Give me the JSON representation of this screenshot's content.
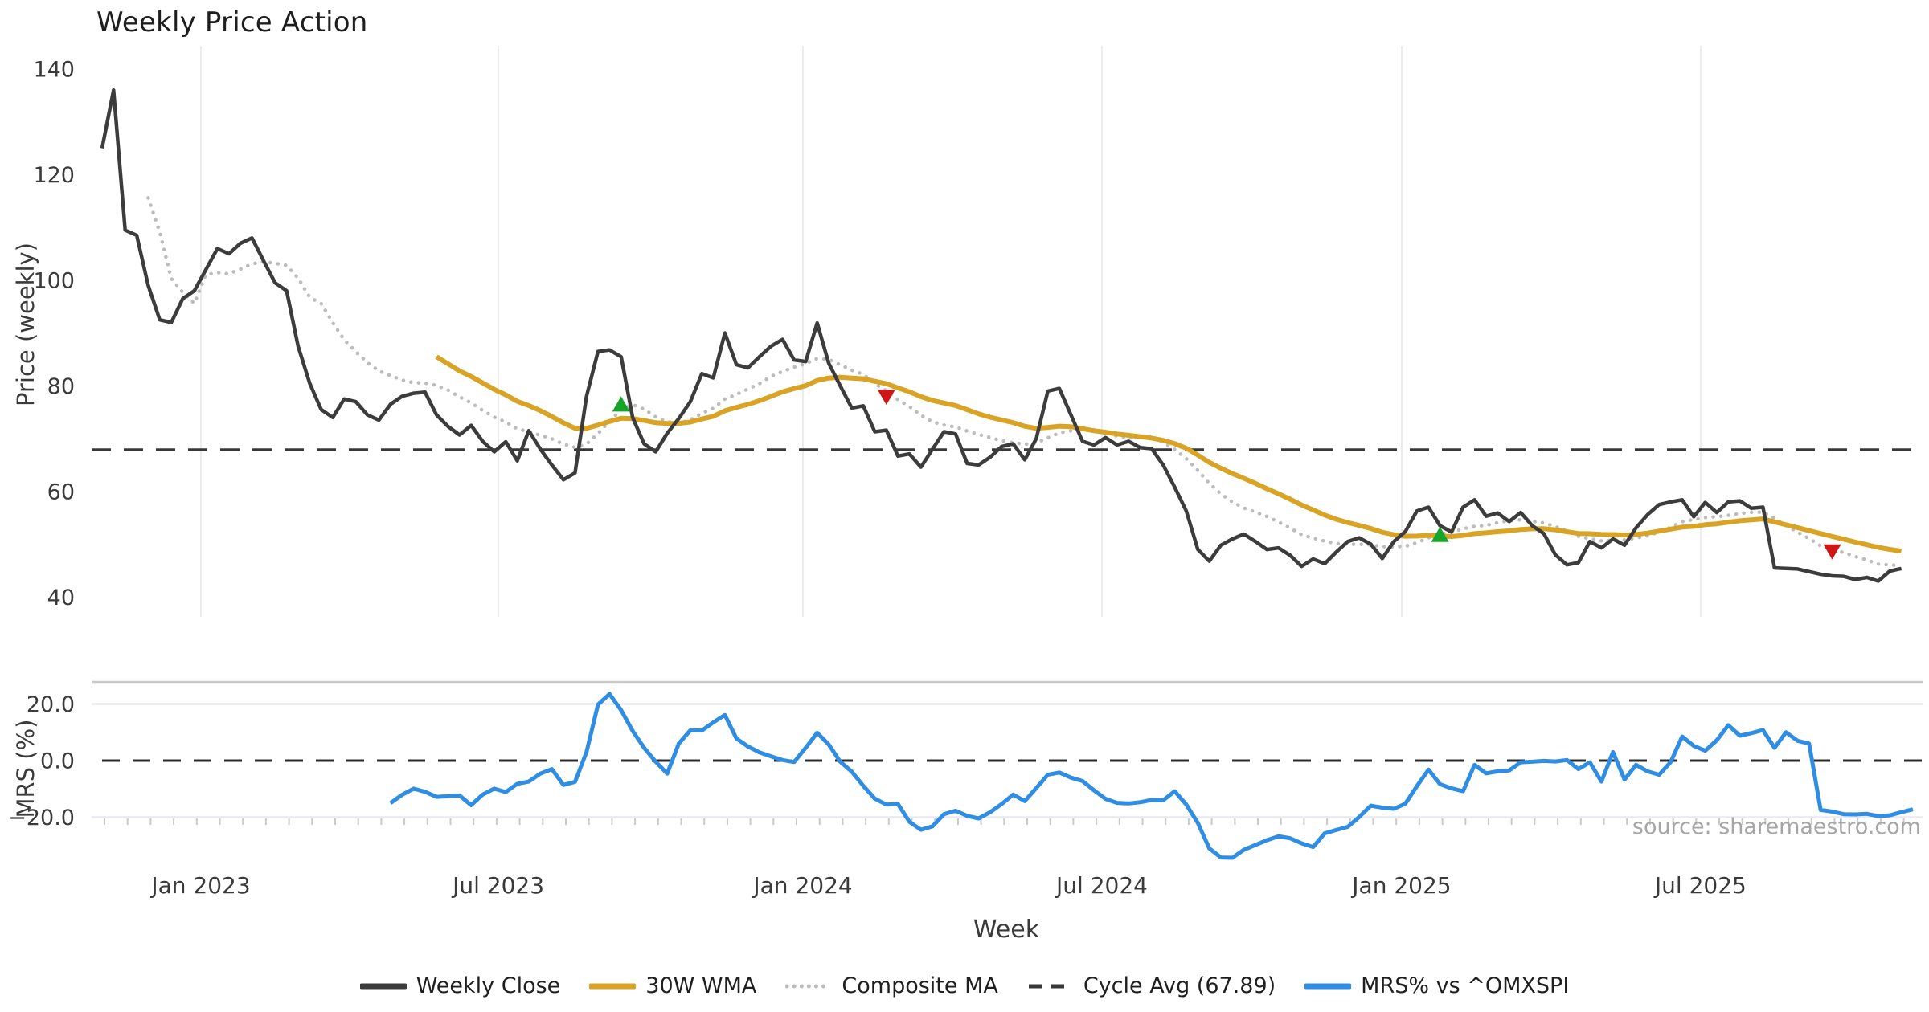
{
  "title": "Weekly Price Action",
  "source_note": "source: sharemaestro.com",
  "axes": {
    "price_ylabel": "Price (weekly)",
    "mrs_ylabel": "MRS (%)",
    "xlabel": "Week",
    "price_yticks": [
      140,
      120,
      100,
      80,
      60,
      40
    ],
    "mrs_yticks": [
      {
        "label": "20.0",
        "value": 20
      },
      {
        "label": "0.0",
        "value": 0
      },
      {
        "label": "−20.0",
        "value": -20
      }
    ],
    "xticks": [
      {
        "label": "Jan 2023",
        "week": 8.57
      },
      {
        "label": "Jul 2023",
        "week": 34.36
      },
      {
        "label": "Jan 2024",
        "week": 60.77
      },
      {
        "label": "Jul 2024",
        "week": 86.69
      },
      {
        "label": "Jan 2025",
        "week": 112.68
      },
      {
        "label": "Jul 2025",
        "week": 138.6
      }
    ]
  },
  "colors": {
    "weekly_close": "#3c3c3c",
    "wma30": "#d9a425",
    "composite_ma": "#bcbcbc",
    "cycle_avg": "#383838",
    "mrs": "#2f8de4",
    "buy_marker": "#16a528",
    "sell_marker": "#cf1616",
    "gridline": "#ececec",
    "mrs_gridline": "#e9e9f1",
    "mrs_top_spine": "#c9c9c9",
    "tick_text": "#3a3a3a"
  },
  "legend": [
    {
      "label": "Weekly Close",
      "swatch": "solid",
      "color": "#3c3c3c"
    },
    {
      "label": "30W WMA",
      "swatch": "solid",
      "color": "#d9a425"
    },
    {
      "label": "Composite MA",
      "swatch": "dotted",
      "color": "#bcbcbc"
    },
    {
      "label": "Cycle Avg (67.89)",
      "swatch": "dashed",
      "color": "#383838"
    },
    {
      "label": "MRS% vs ^OMXSPI",
      "swatch": "solid",
      "color": "#2f8de4"
    }
  ],
  "chart_data": [
    {
      "type": "line",
      "panel": "price",
      "title": "Weekly Price Action",
      "ylabel": "Price (weekly)",
      "xlabel": "Week",
      "x_unit": "weeks, starting early Nov 2022",
      "ylim": [
        36,
        145
      ],
      "grid": "vertical-only",
      "cycle_avg": 67.89,
      "series": [
        {
          "name": "Weekly Close",
          "start_week": 0,
          "values": [
            125,
            136,
            109.5,
            108.5,
            99,
            92.5,
            92,
            96.5,
            98,
            102,
            106,
            105,
            107,
            108,
            103.7,
            99.5,
            98,
            87.5,
            80.5,
            75.5,
            74,
            77.5,
            77,
            74.5,
            73.5,
            76.5,
            78,
            78.6,
            78.8,
            74.5,
            72.3,
            70.7,
            72.5,
            69.5,
            67.5,
            69.4,
            65.8,
            71.5,
            68,
            65,
            62.2,
            63.5,
            78,
            86.5,
            86.8,
            85.5,
            74,
            69,
            67.5,
            71,
            73.8,
            77,
            82.3,
            81.5,
            90,
            84,
            83.4,
            85.5,
            87.5,
            88.8,
            84.9,
            84.6,
            91.9,
            84.3,
            80,
            75.8,
            76.2,
            71.3,
            71.6,
            66.7,
            67.1,
            64.6,
            68,
            71.3,
            70.9,
            65.3,
            65,
            66.5,
            68.5,
            69,
            66,
            70,
            79,
            79.5,
            74.5,
            69.5,
            68.8,
            70.2,
            68.8,
            69.5,
            68.3,
            68.1,
            65,
            60.8,
            56.3,
            49,
            46.8,
            49.8,
            51,
            51.9,
            50.5,
            49,
            49.3,
            47.9,
            45.8,
            47.2,
            46.3,
            48.5,
            50.5,
            51.2,
            50,
            47.3,
            50.5,
            52.4,
            56.3,
            57,
            53.5,
            52.3,
            57,
            58.4,
            55.3,
            55.9,
            54.3,
            56,
            53.5,
            52,
            48,
            46.1,
            46.5,
            50.5,
            49.3,
            51,
            49.8,
            53.1,
            55.6,
            57.5,
            58,
            58.4,
            55.2,
            57.9,
            56,
            58,
            58.2,
            56.8,
            57,
            45.5,
            45.4,
            45.3,
            44.8,
            44.3,
            44,
            43.9,
            43.3,
            43.7,
            43,
            44.9,
            45.4
          ]
        },
        {
          "name": "30W WMA",
          "derived": "30-week weighted moving average of Weekly Close",
          "start_week": 29
        },
        {
          "name": "Composite MA",
          "derived": "mean of 5/10/20-week simple moving averages of Weekly Close",
          "start_week": 4
        },
        {
          "name": "Cycle Avg (67.89)",
          "style": "dashed-horizontal",
          "value": 67.89
        }
      ],
      "markers": {
        "buy": [
          {
            "week": 45,
            "price": 76.5
          },
          {
            "week": 116,
            "price": 51.8
          }
        ],
        "sell": [
          {
            "week": 68,
            "price": 77.9
          },
          {
            "week": 150,
            "price": 48.6
          }
        ]
      }
    },
    {
      "type": "line",
      "panel": "mrs",
      "ylabel": "MRS (%)",
      "zero_line": 0,
      "grid_values": [
        20,
        -20
      ],
      "series": [
        {
          "name": "MRS% vs ^OMXSPI",
          "start_week": 25,
          "values": [
            -15,
            -12.1,
            -9.9,
            -11,
            -12.8,
            -12.6,
            -12.3,
            -15.7,
            -12,
            -9.9,
            -11.1,
            -8.2,
            -7.4,
            -4.6,
            -3,
            -8.6,
            -7.5,
            3,
            19.8,
            23.5,
            17.8,
            10.5,
            4.5,
            -0.4,
            -4.6,
            6,
            10.7,
            10.6,
            13.5,
            16.1,
            7.8,
            5,
            2.9,
            1.5,
            0.2,
            -0.5,
            4.5,
            9.8,
            5.7,
            -0.4,
            -3.9,
            -8.9,
            -13.4,
            -15.5,
            -15.3,
            -21.6,
            -24.4,
            -23.2,
            -18.9,
            -17.7,
            -19.5,
            -20.4,
            -18.2,
            -15.3,
            -12,
            -14.3,
            -9.7,
            -5,
            -4.2,
            -6,
            -7.2,
            -10.5,
            -13.5,
            -14.9,
            -15.1,
            -14.7,
            -13.9,
            -14,
            -10.8,
            -15.5,
            -22,
            -31,
            -34.2,
            -34.3,
            -31.5,
            -29.8,
            -28.1,
            -26.7,
            -27.4,
            -29.2,
            -30.5,
            -25.7,
            -24.5,
            -23.4,
            -19.9,
            -15.9,
            -16.6,
            -17,
            -15.2,
            -9,
            -3.2,
            -8.3,
            -9.8,
            -10.8,
            -1.5,
            -4.5,
            -3.8,
            -3.5,
            -0.6,
            -0.4,
            -0.1,
            -0.3,
            0.2,
            -3,
            -0.6,
            -7.4,
            3,
            -6.7,
            -1.5,
            -3.8,
            -5,
            -0.5,
            8.5,
            5.2,
            3.5,
            7.2,
            12.5,
            8.8,
            9.7,
            10.8,
            4.5,
            10,
            7,
            6,
            -17.4,
            -18,
            -18.9,
            -19,
            -18.8,
            -19.6,
            -19.3,
            -18.2,
            -17.2
          ]
        }
      ]
    }
  ]
}
